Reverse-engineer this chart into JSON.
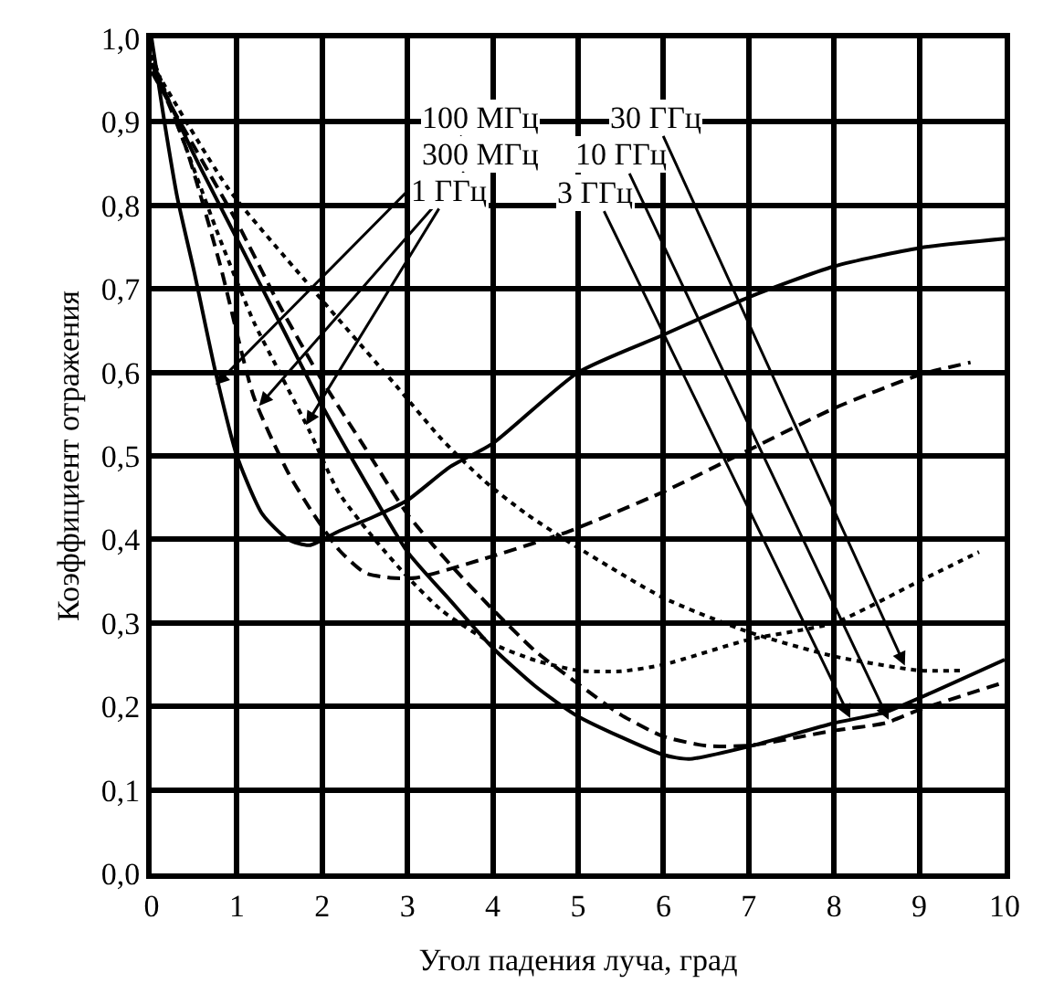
{
  "chart_data": {
    "type": "line",
    "xlabel": "Угол падения луча, град",
    "ylabel": "Коэффициент отражения",
    "xlim": [
      0,
      10
    ],
    "ylim": [
      0,
      1
    ],
    "xticks": [
      0,
      1,
      2,
      3,
      4,
      5,
      6,
      7,
      8,
      9,
      10
    ],
    "yticks": [
      {
        "value": 0,
        "label": "0,0"
      },
      {
        "value": 0.1,
        "label": "0,1"
      },
      {
        "value": 0.2,
        "label": "0,2"
      },
      {
        "value": 0.3,
        "label": "0,3"
      },
      {
        "value": 0.4,
        "label": "0,4"
      },
      {
        "value": 0.5,
        "label": "0,5"
      },
      {
        "value": 0.6,
        "label": "0,6"
      },
      {
        "value": 0.7,
        "label": "0,7"
      },
      {
        "value": 0.8,
        "label": "0,8"
      },
      {
        "value": 0.9,
        "label": "0,9"
      },
      {
        "value": 1.0,
        "label": "1,0"
      }
    ],
    "grid": true,
    "marker": "none",
    "series": [
      {
        "color": "#000000",
        "line_style": "solid",
        "x": [
          0,
          0.15,
          0.3,
          0.5,
          0.75,
          1,
          1.3,
          1.6,
          1.85,
          2.2,
          2.6,
          3,
          3.5,
          4,
          5,
          6,
          7,
          8,
          9,
          10
        ],
        "values": [
          1.0,
          0.9,
          0.81,
          0.72,
          0.6,
          0.5,
          0.43,
          0.4,
          0.393,
          0.41,
          0.427,
          0.447,
          0.487,
          0.515,
          0.6,
          0.645,
          0.69,
          0.727,
          0.749,
          0.76
        ]
      },
      {
        "color": "#000000",
        "line_style": "dashed",
        "x": [
          0,
          0.4,
          0.8,
          1.2,
          1.6,
          1.9,
          2.2,
          2.5,
          2.8,
          3.1,
          4,
          4.9,
          6,
          7,
          8,
          9,
          9.6
        ],
        "values": [
          0.97,
          0.87,
          0.73,
          0.57,
          0.48,
          0.43,
          0.387,
          0.36,
          0.354,
          0.354,
          0.38,
          0.41,
          0.457,
          0.507,
          0.557,
          0.597,
          0.612
        ]
      },
      {
        "color": "#000000",
        "line_style": "dotted",
        "x": [
          0,
          0.4,
          0.8,
          1.2,
          1.5,
          1.85,
          2.2,
          2.64,
          3,
          3.4,
          4,
          4.5,
          5,
          5.5,
          6,
          7,
          8,
          9,
          9.7
        ],
        "values": [
          0.98,
          0.87,
          0.76,
          0.66,
          0.6,
          0.53,
          0.455,
          0.397,
          0.355,
          0.315,
          0.275,
          0.255,
          0.243,
          0.242,
          0.25,
          0.28,
          0.3,
          0.35,
          0.385
        ]
      },
      {
        "color": "#000000",
        "line_style": "solid",
        "x": [
          0,
          0.5,
          1,
          1.5,
          2,
          2.5,
          3,
          3.5,
          4,
          4.5,
          5,
          6,
          6.3,
          7,
          8,
          8.6,
          9,
          10
        ],
        "values": [
          0.97,
          0.86,
          0.76,
          0.66,
          0.56,
          0.47,
          0.385,
          0.327,
          0.27,
          0.224,
          0.188,
          0.142,
          0.137,
          0.152,
          0.18,
          0.193,
          0.21,
          0.256
        ]
      },
      {
        "color": "#000000",
        "line_style": "dashed",
        "x": [
          0,
          0.5,
          1,
          1.5,
          2,
          2.5,
          3,
          3.5,
          4,
          4.5,
          5,
          5.5,
          6,
          6.5,
          7,
          8,
          8.6,
          9,
          10
        ],
        "values": [
          0.96,
          0.87,
          0.78,
          0.68,
          0.59,
          0.51,
          0.43,
          0.37,
          0.316,
          0.266,
          0.227,
          0.19,
          0.164,
          0.153,
          0.153,
          0.171,
          0.18,
          0.196,
          0.229
        ]
      },
      {
        "color": "#000000",
        "line_style": "dotted",
        "x": [
          0,
          0.9,
          1.8,
          2.9,
          3.4,
          3.9,
          4.4,
          5,
          6,
          7,
          8,
          9,
          9.5
        ],
        "values": [
          0.97,
          0.82,
          0.71,
          0.58,
          0.52,
          0.47,
          0.43,
          0.39,
          0.33,
          0.289,
          0.26,
          0.243,
          0.243
        ]
      }
    ],
    "annotations": [
      {
        "text": "100 МГц",
        "x": 0.75,
        "y": 0.585
      },
      {
        "text": "300 МГц",
        "x": 1.26,
        "y": 0.56
      },
      {
        "text": "1 ГГц",
        "x": 1.81,
        "y": 0.537
      },
      {
        "text": "3 ГГц",
        "x": 8.19,
        "y": 0.186
      },
      {
        "text": "10 ГГц",
        "x": 8.64,
        "y": 0.184
      },
      {
        "text": "30 ГГц",
        "x": 8.83,
        "y": 0.249
      }
    ]
  }
}
